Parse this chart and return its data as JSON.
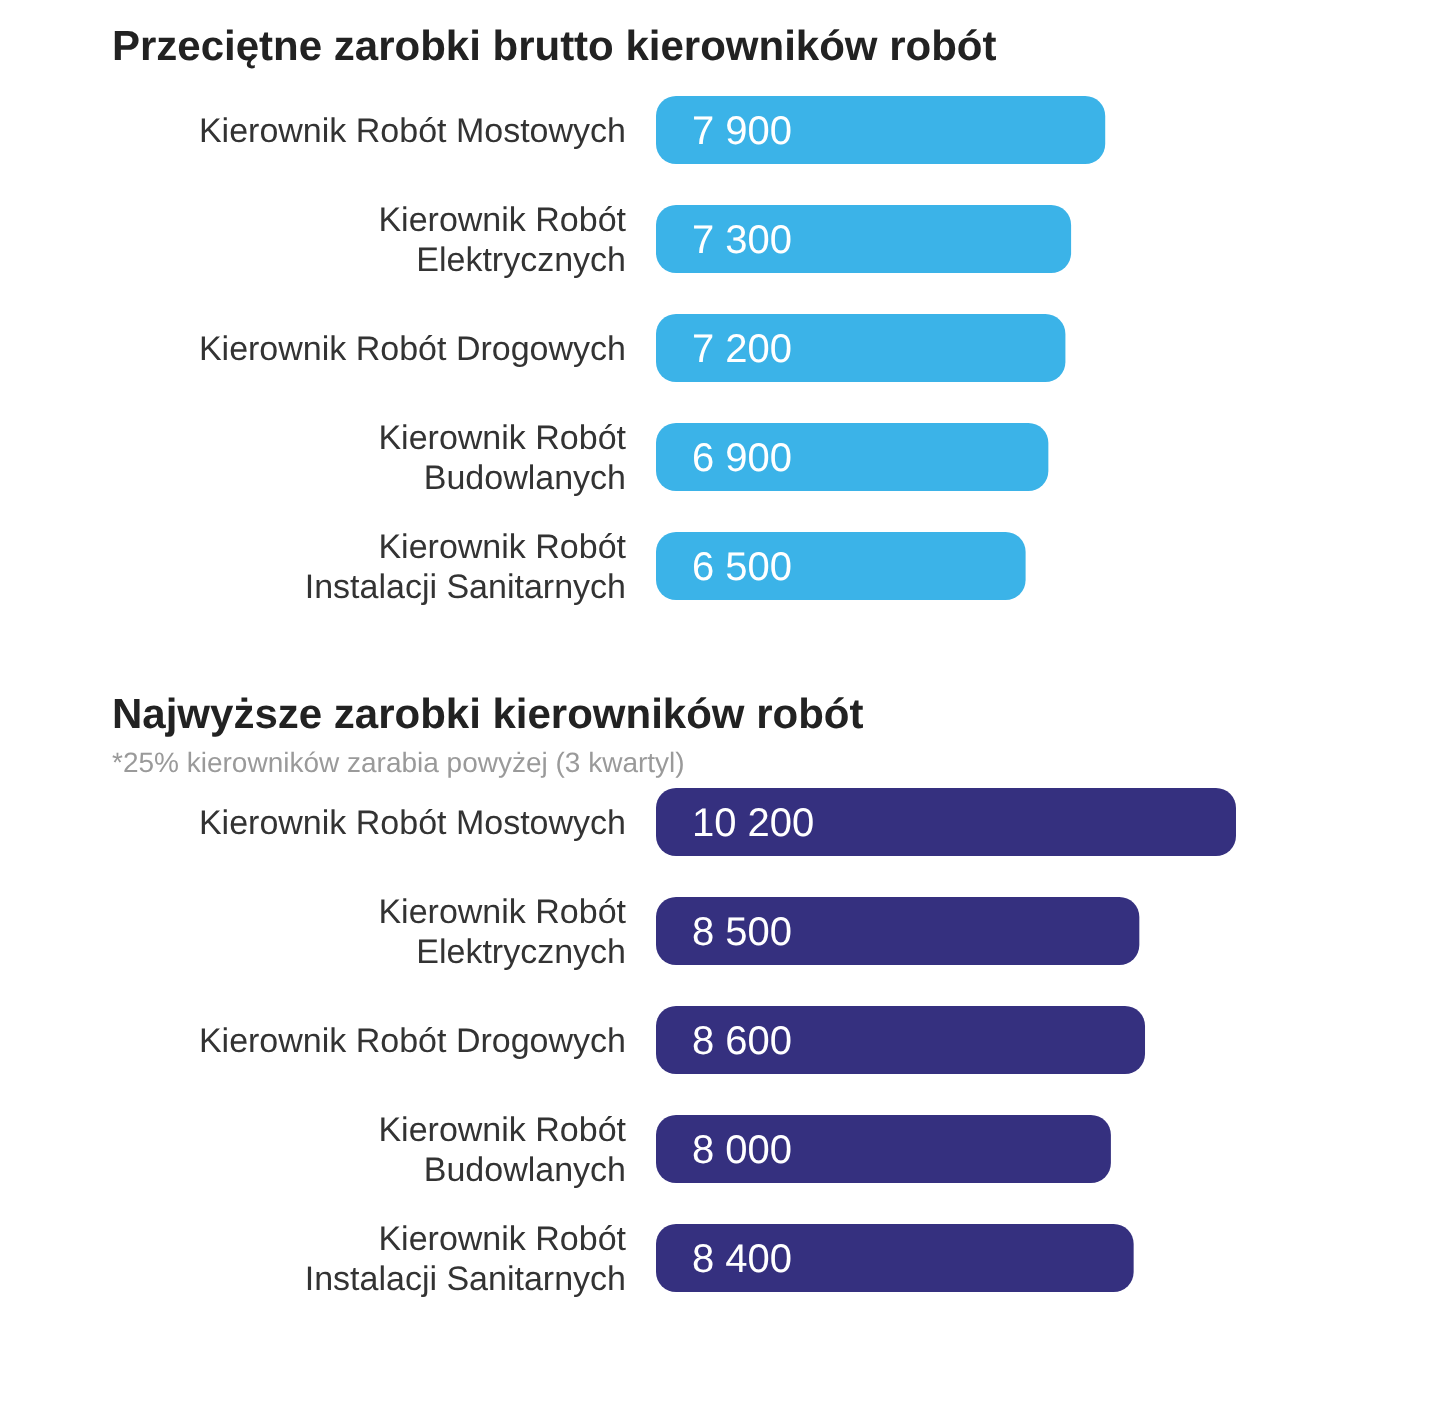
{
  "chart_data": [
    {
      "type": "bar",
      "orientation": "horizontal",
      "title": "Przeciętne zarobki brutto kierowników robót",
      "categories": [
        "Kierownik Robót Mostowych",
        "Kierownik Robót Elektrycznych",
        "Kierownik Robót Drogowych",
        "Kierownik Robót Budowlanych",
        "Kierownik Robót Instalacji Sanitarnych"
      ],
      "values": [
        7900,
        7300,
        7200,
        6900,
        6500
      ],
      "value_labels": [
        "7 900",
        "7 300",
        "7 200",
        "6 900",
        "6 500"
      ],
      "color": "#3bb3e8"
    },
    {
      "type": "bar",
      "orientation": "horizontal",
      "title": "Najwyższe zarobki kierowników robót",
      "subtitle": "*25% kierowników zarabia powyżej (3 kwartyl)",
      "categories": [
        "Kierownik Robót Mostowych",
        "Kierownik Robót Elektrycznych",
        "Kierownik Robót Drogowych",
        "Kierownik Robót Budowlanych",
        "Kierownik Robót Instalacji Sanitarnych"
      ],
      "values": [
        10200,
        8500,
        8600,
        8000,
        8400
      ],
      "value_labels": [
        "10 200",
        "8 500",
        "8 600",
        "8 000",
        "8 400"
      ],
      "color": "#35307f"
    }
  ]
}
